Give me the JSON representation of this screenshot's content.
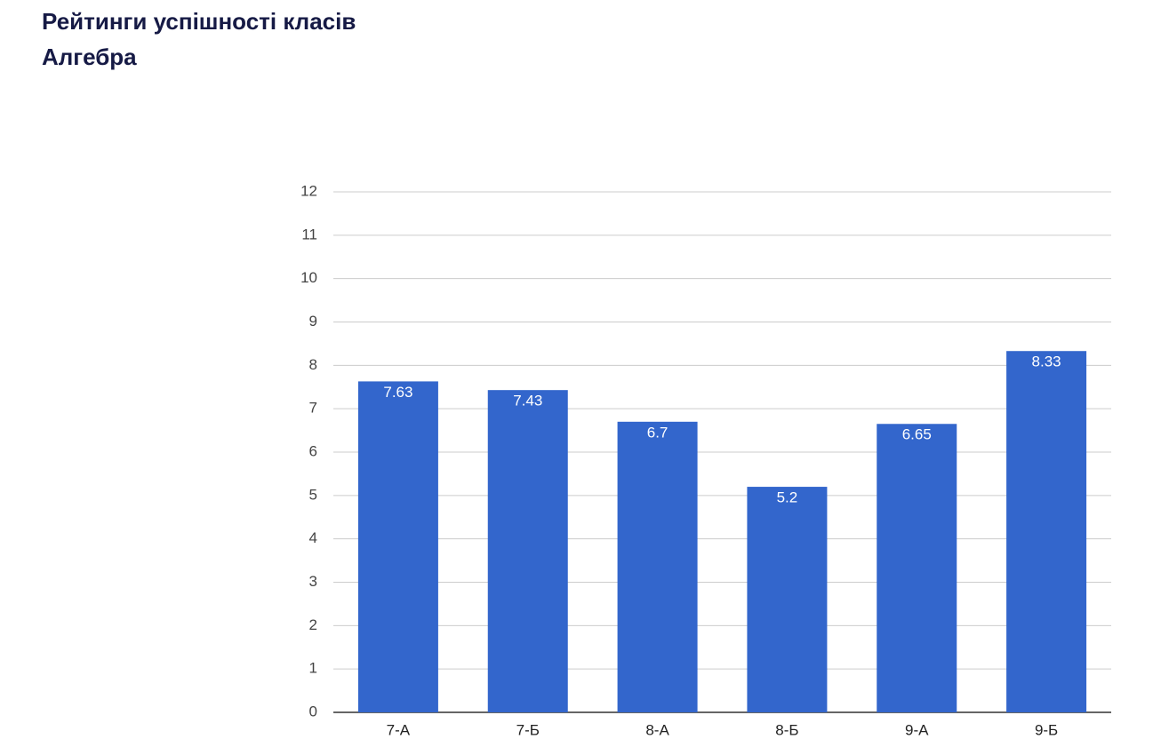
{
  "chart_data": {
    "type": "bar",
    "title": "Рейтинги успішності класів",
    "subtitle": "Алгебра",
    "categories": [
      "7-А",
      "7-Б",
      "8-А",
      "8-Б",
      "9-А",
      "9-Б"
    ],
    "values": [
      7.63,
      7.43,
      6.7,
      5.2,
      6.65,
      8.33
    ],
    "color": "#3366cc",
    "ylim": [
      0,
      12
    ],
    "yticks": [
      0,
      1,
      2,
      3,
      4,
      5,
      6,
      7,
      8,
      9,
      10,
      11,
      12
    ],
    "grid": true
  }
}
